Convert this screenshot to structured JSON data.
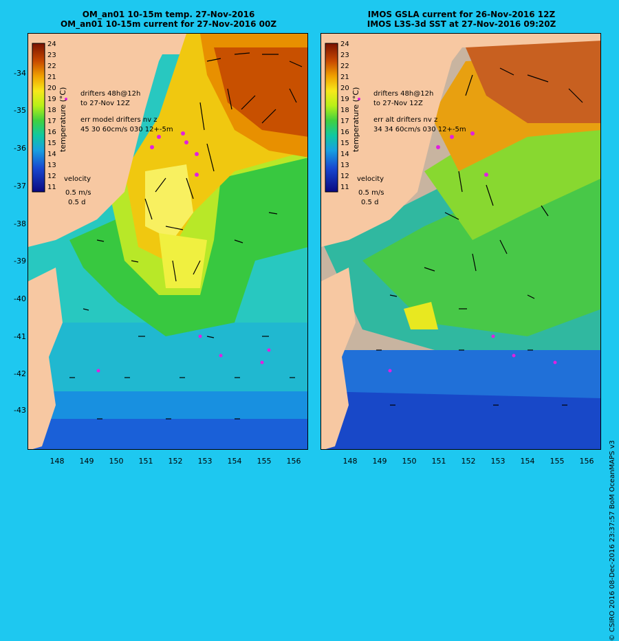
{
  "left_panel": {
    "title_line1": "OM_an01 10-15m temp. 27-Nov-2016",
    "title_line2": "OM_an01 10-15m current for 27-Nov-2016 00Z",
    "drifters_line1": "drifters 48h@12h",
    "drifters_line2": "to 27-Nov 12Z",
    "err_line1": "err model drifters nv z",
    "err_line2": "45 30 60cm/s 030 12+-5m",
    "velocity_label": "velocity",
    "velocity_scale": "0.5 m/s",
    "velocity_time": "0.5 d"
  },
  "right_panel": {
    "title_line1": "IMOS GSLA current for 26-Nov-2016 12Z",
    "title_line2": "IMOS L3S-3d SST at 27-Nov-2016 09:20Z",
    "drifters_line1": "drifters 48h@12h",
    "drifters_line2": "to 27-Nov 12Z",
    "err_line1": "err alt drifters nv z",
    "err_line2": "34 34 60cm/s 030 12+-5m",
    "velocity_label": "velocity",
    "velocity_scale": "0.5 m/s",
    "velocity_time": "0.5 d"
  },
  "colorbar": {
    "title": "temperature (°C)",
    "ticks": [
      "24",
      "23",
      "22",
      "21",
      "20",
      "19",
      "18",
      "17",
      "16",
      "15",
      "14",
      "13",
      "12",
      "11"
    ]
  },
  "lat_ticks": [
    "-34",
    "-35",
    "-36",
    "-37",
    "-38",
    "-39",
    "-40",
    "-41",
    "-42",
    "-43"
  ],
  "lon_ticks": [
    "148",
    "149",
    "150",
    "151",
    "152",
    "153",
    "154",
    "155",
    "156"
  ],
  "credit": "© CSIRO 2016   08-Dec-2016 23:37:57 BoM OceanMAPS v3",
  "colors": {
    "background": "#1ec8f0",
    "land": "#f7c8a2",
    "drifter": "#e020e0",
    "no_data": "#c8b4a0"
  }
}
